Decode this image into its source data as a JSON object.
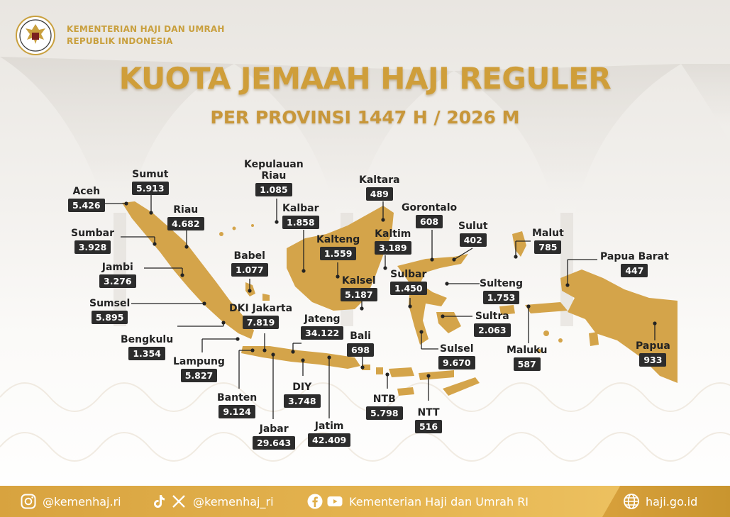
{
  "org": {
    "line1": "KEMENTERIAN HAJI DAN UMRAH",
    "line2": "REPUBLIK INDONESIA"
  },
  "title": "KUOTA JEMAAH HAJI REGULER",
  "subtitle": "PER PROVINSI 1447 H / 2026 M",
  "colors": {
    "gold": "#d4a44a",
    "dark": "#2c2c2c",
    "footer": "#dfad47"
  },
  "provinces": {
    "aceh": {
      "name": "Aceh",
      "value": "5.426"
    },
    "sumut": {
      "name": "Sumut",
      "value": "5.913"
    },
    "riau": {
      "name": "Riau",
      "value": "4.682"
    },
    "sumbar": {
      "name": "Sumbar",
      "value": "3.928"
    },
    "jambi": {
      "name": "Jambi",
      "value": "3.276"
    },
    "sumsel": {
      "name": "Sumsel",
      "value": "5.895"
    },
    "bengkulu": {
      "name": "Bengkulu",
      "value": "1.354"
    },
    "lampung": {
      "name": "Lampung",
      "value": "5.827"
    },
    "banten": {
      "name": "Banten",
      "value": "9.124"
    },
    "jabar": {
      "name": "Jabar",
      "value": "29.643"
    },
    "dki": {
      "name": "DKI Jakarta",
      "value": "7.819"
    },
    "babel": {
      "name": "Babel",
      "value": "1.077"
    },
    "kepri": {
      "name": "Kepulauan\nRiau",
      "value": "1.085"
    },
    "kalbar": {
      "name": "Kalbar",
      "value": "1.858"
    },
    "kalteng": {
      "name": "Kalteng",
      "value": "1.559"
    },
    "kaltara": {
      "name": "Kaltara",
      "value": "489"
    },
    "kaltim": {
      "name": "Kaltim",
      "value": "3.189"
    },
    "kalsel": {
      "name": "Kalsel",
      "value": "5.187"
    },
    "jateng": {
      "name": "Jateng",
      "value": "34.122"
    },
    "diy": {
      "name": "DIY",
      "value": "3.748"
    },
    "jatim": {
      "name": "Jatim",
      "value": "42.409"
    },
    "bali": {
      "name": "Bali",
      "value": "698"
    },
    "ntb": {
      "name": "NTB",
      "value": "5.798"
    },
    "ntt": {
      "name": "NTT",
      "value": "516"
    },
    "gorontalo": {
      "name": "Gorontalo",
      "value": "608"
    },
    "sulut": {
      "name": "Sulut",
      "value": "402"
    },
    "sulbar": {
      "name": "Sulbar",
      "value": "1.450"
    },
    "sulteng": {
      "name": "Sulteng",
      "value": "1.753"
    },
    "sultra": {
      "name": "Sultra",
      "value": "2.063"
    },
    "sulsel": {
      "name": "Sulsel",
      "value": "9.670"
    },
    "malut": {
      "name": "Malut",
      "value": "785"
    },
    "maluku": {
      "name": "Maluku",
      "value": "587"
    },
    "papuabarat": {
      "name": "Papua Barat",
      "value": "447"
    },
    "papua": {
      "name": "Papua",
      "value": "933"
    }
  },
  "footer": {
    "instagram": "@kemenhaj.ri",
    "tiktok_x": "@kemenhaj_ri",
    "fb_yt": "Kementerian Haji dan Umrah RI",
    "website": "haji.go.id"
  },
  "icons": [
    "instagram-icon",
    "tiktok-icon",
    "x-icon",
    "facebook-icon",
    "youtube-icon",
    "globe-icon"
  ]
}
